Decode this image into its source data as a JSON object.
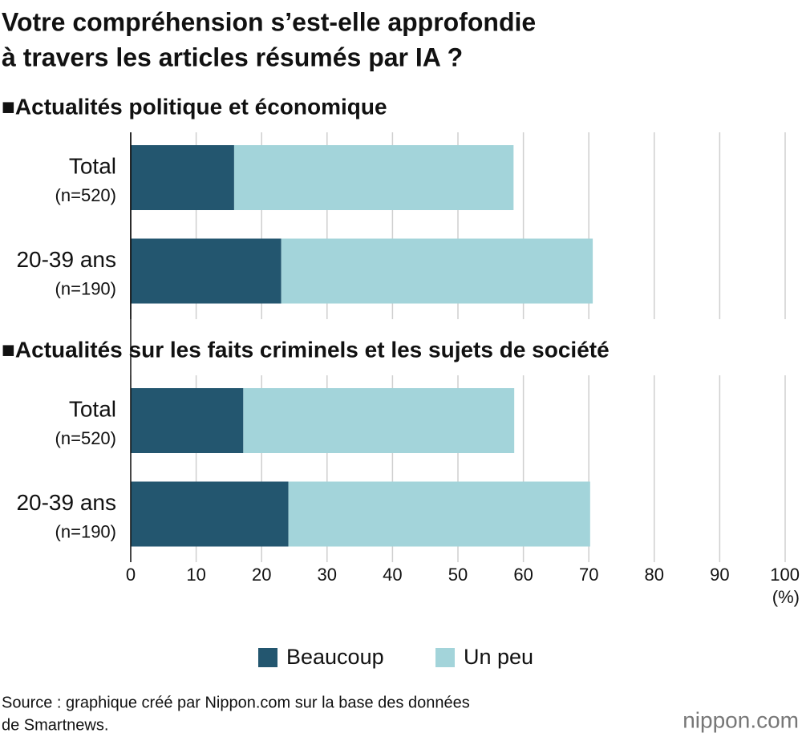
{
  "chart_data": {
    "type": "bar",
    "orientation": "horizontal",
    "stacked": true,
    "title": [
      "Votre compréhension s’est-elle approfondie",
      "à travers les articles résumés par IA ?"
    ],
    "unit": "(%)",
    "xlim": [
      0,
      100
    ],
    "xticks": [
      0,
      10,
      20,
      30,
      40,
      50,
      60,
      70,
      80,
      90,
      100
    ],
    "grid": true,
    "series": [
      {
        "name": "Beaucoup",
        "color": "#23566f"
      },
      {
        "name": "Un peu",
        "color": "#a3d4da"
      }
    ],
    "panels": [
      {
        "title": "■Actualités politique et économique",
        "categories": [
          {
            "label": "Total",
            "sublabel": "(n=520)"
          },
          {
            "label": "20-39 ans",
            "sublabel": "(n=190)"
          }
        ],
        "series": [
          {
            "values": [
              15.8,
              23.0
            ]
          },
          {
            "values": [
              42.7,
              47.6
            ]
          }
        ]
      },
      {
        "title": "■Actualités sur les faits criminels et les sujets de société",
        "categories": [
          {
            "label": "Total",
            "sublabel": "(n=520)"
          },
          {
            "label": "20-39 ans",
            "sublabel": "(n=190)"
          }
        ],
        "series": [
          {
            "values": [
              17.2,
              24.1
            ]
          },
          {
            "values": [
              41.4,
              46.1
            ]
          }
        ]
      }
    ],
    "source": [
      "Source : graphique créé par Nippon.com sur la base des données",
      "de Smartnews."
    ],
    "logo": "nippon.com"
  }
}
